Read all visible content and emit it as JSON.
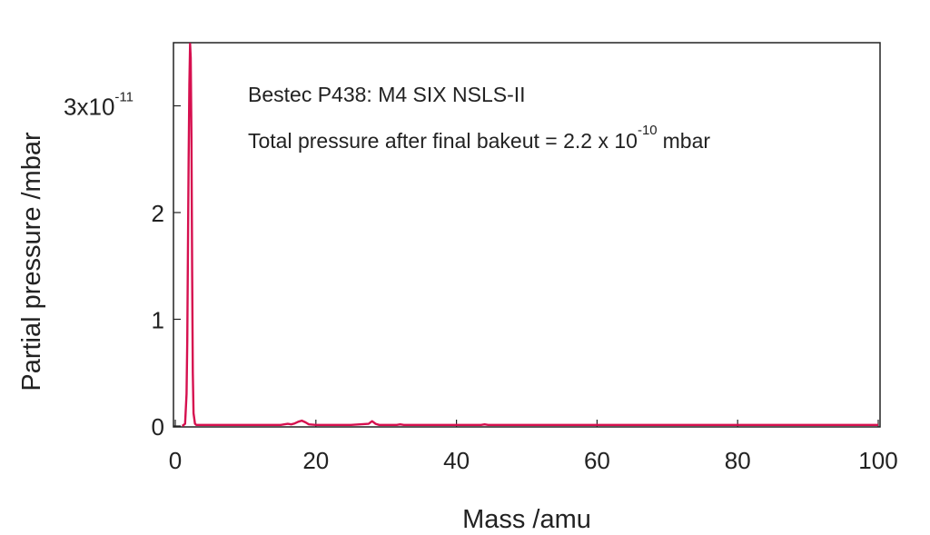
{
  "chart_data": {
    "type": "line",
    "annotations": {
      "line1": "Bestec P438: M4 SIX NSLS-II",
      "line2_prefix": "Total pressure after final bakeut = 2.2 x 10",
      "line2_exponent": "-10",
      "line2_suffix": "mbar"
    },
    "xlabel": "Mass /amu",
    "ylabel": "Partial pressure /mbar",
    "xlim": [
      0,
      100
    ],
    "ylim": [
      -0.02,
      3.6
    ],
    "y_scale_factor": 1e-11,
    "x_ticks": [
      {
        "value": 0,
        "label": "0"
      },
      {
        "value": 20,
        "label": "20"
      },
      {
        "value": 40,
        "label": "40"
      },
      {
        "value": 60,
        "label": "60"
      },
      {
        "value": 80,
        "label": "80"
      },
      {
        "value": 100,
        "label": "100"
      }
    ],
    "y_ticks": [
      {
        "value": 0,
        "label": "0"
      },
      {
        "value": 1,
        "label": "1"
      },
      {
        "value": 2,
        "label": "2"
      },
      {
        "value": 3,
        "label": "3x10",
        "exponent": "-11"
      }
    ],
    "grid": false,
    "series": [
      {
        "color": "#d6104f",
        "x": [
          1.0,
          1.4,
          1.6,
          1.7,
          1.8,
          1.9,
          2.0,
          2.1,
          2.2,
          2.3,
          2.4,
          2.5,
          2.6,
          2.8,
          3.0,
          5,
          10,
          15,
          15.5,
          16,
          16.5,
          17,
          17.5,
          18,
          18.5,
          19,
          20,
          25,
          27.5,
          28,
          28.5,
          29,
          31.5,
          32,
          32.5,
          40,
          43.5,
          44,
          44.5,
          60,
          80,
          100
        ],
        "y": [
          0.0,
          0.02,
          0.3,
          0.8,
          1.6,
          2.5,
          3.2,
          3.58,
          3.45,
          2.7,
          1.4,
          0.5,
          0.12,
          0.02,
          0.01,
          0.01,
          0.01,
          0.01,
          0.015,
          0.02,
          0.015,
          0.025,
          0.04,
          0.05,
          0.035,
          0.015,
          0.01,
          0.01,
          0.02,
          0.045,
          0.02,
          0.01,
          0.01,
          0.015,
          0.01,
          0.01,
          0.01,
          0.015,
          0.01,
          0.01,
          0.01,
          0.01
        ]
      }
    ]
  }
}
